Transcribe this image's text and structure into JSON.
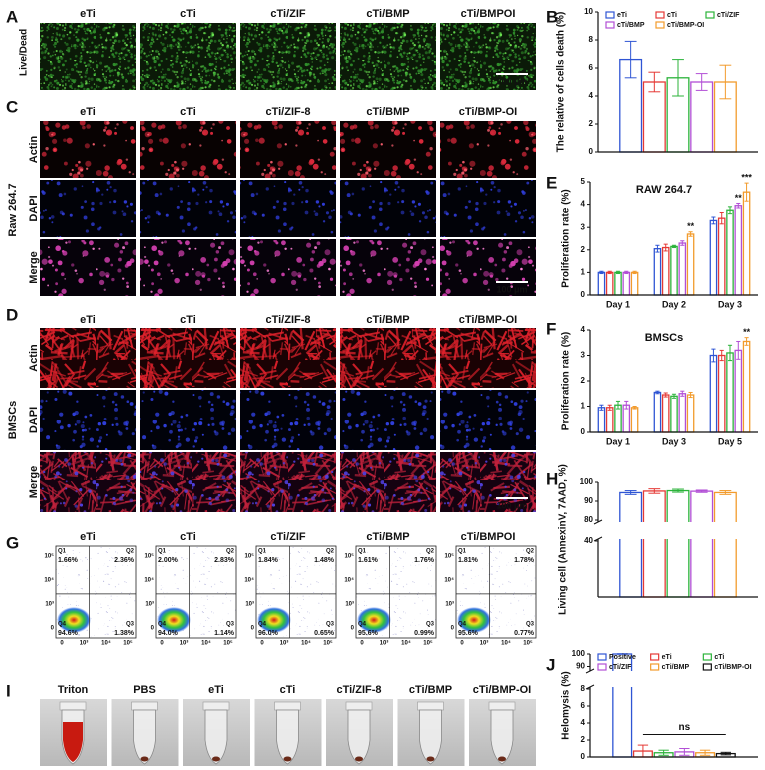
{
  "panels": {
    "A": {
      "label": "A",
      "columns": [
        "eTi",
        "cTi",
        "cTi/ZIF",
        "cTi/BMP",
        "cTi/BMPOI"
      ],
      "side": [
        "Live",
        "/Dead"
      ],
      "scale_bar": "200 μm"
    },
    "C": {
      "label": "C",
      "columns": [
        "eTi",
        "cTi",
        "cTi/ZIF-8",
        "cTi/BMP",
        "cTi/BMP-OI"
      ],
      "rows": [
        "Actin",
        "DAPI",
        "Merge"
      ],
      "side": "Raw 264.7",
      "scale_bar": "100 μm"
    },
    "D": {
      "label": "D",
      "columns": [
        "eTi",
        "cTi",
        "cTi/ZIF-8",
        "cTi/BMP",
        "cTi/BMP-OI"
      ],
      "rows": [
        "Actin",
        "DAPI",
        "Merge"
      ],
      "side": "BMSCs",
      "scale_bar": "100 μm"
    },
    "G": {
      "label": "G",
      "columns": [
        "eTi",
        "cTi",
        "cTi/ZIF",
        "cTi/BMP",
        "cTi/BMPOI"
      ],
      "y_ticks": [
        "10⁵",
        "10⁴",
        "10³",
        "0"
      ],
      "x_ticks": [
        "0",
        "10³",
        "10⁴",
        "10⁵"
      ],
      "quadrants": [
        "Q1",
        "Q2",
        "Q3",
        "Q4"
      ],
      "percentages": [
        [
          "1.66%",
          "2.36%",
          "1.38%",
          "94.6%"
        ],
        [
          "2.00%",
          "2.83%",
          "1.14%",
          "94.0%"
        ],
        [
          "1.84%",
          "1.48%",
          "0.65%",
          "96.0%"
        ],
        [
          "1.61%",
          "1.76%",
          "0.99%",
          "95.6%"
        ],
        [
          "1.81%",
          "1.78%",
          "0.77%",
          "95.6%"
        ]
      ]
    },
    "I": {
      "label": "I",
      "tubes": [
        "Triton",
        "PBS",
        "eTi",
        "cTi",
        "cTi/ZIF-8",
        "cTi/BMP",
        "cTi/BMP-OI"
      ]
    }
  },
  "chart_data": [
    {
      "type": "bar",
      "panel": "B",
      "ylabel": "The relative of cells death (%)",
      "categories": [
        null
      ],
      "legend": "top",
      "series": [
        {
          "name": "eTi",
          "color": "#2f55d4",
          "values": [
            6.6
          ],
          "errors": [
            1.3
          ]
        },
        {
          "name": "cTi",
          "color": "#e53935",
          "values": [
            5.0
          ],
          "errors": [
            0.7
          ]
        },
        {
          "name": "cTi/ZIF",
          "color": "#2bb33a",
          "values": [
            5.3
          ],
          "errors": [
            1.3
          ]
        },
        {
          "name": "cTi/BMP",
          "color": "#b24fd6",
          "values": [
            5.0
          ],
          "errors": [
            0.6
          ]
        },
        {
          "name": "cTi/BMP-OI",
          "color": "#f29b2c",
          "values": [
            5.0
          ],
          "errors": [
            1.2
          ]
        }
      ],
      "ylim": [
        0,
        10
      ],
      "yticks": [
        0,
        2,
        4,
        6,
        8,
        10
      ]
    },
    {
      "type": "bar",
      "panel": "E",
      "title": "RAW 264.7",
      "ylabel": "Proliferation rate (%)",
      "categories": [
        "Day 1",
        "Day 2",
        "Day 3"
      ],
      "series": [
        {
          "color": "#2f55d4",
          "values": [
            1.0,
            2.05,
            3.3
          ],
          "errors": [
            0.05,
            0.15,
            0.15
          ]
        },
        {
          "color": "#e53935",
          "values": [
            1.0,
            2.1,
            3.4
          ],
          "errors": [
            0.05,
            0.15,
            0.25
          ]
        },
        {
          "color": "#2bb33a",
          "values": [
            1.0,
            2.15,
            3.75
          ],
          "errors": [
            0.05,
            0.05,
            0.15
          ]
        },
        {
          "color": "#b24fd6",
          "values": [
            1.0,
            2.3,
            3.95
          ],
          "errors": [
            0.05,
            0.1,
            0.1
          ]
        },
        {
          "color": "#f29b2c",
          "values": [
            1.0,
            2.7,
            4.55
          ],
          "errors": [
            0.05,
            0.1,
            0.4
          ]
        }
      ],
      "ylim": [
        0,
        5
      ],
      "yticks": [
        0,
        1,
        2,
        3,
        4,
        5
      ],
      "annotations": [
        "**",
        "**",
        "***"
      ]
    },
    {
      "type": "bar",
      "panel": "F",
      "title": "BMSCs",
      "ylabel": "Proliferation rate (%)",
      "categories": [
        "Day 1",
        "Day 3",
        "Day 5"
      ],
      "series": [
        {
          "color": "#2f55d4",
          "values": [
            0.95,
            1.55,
            3.0
          ],
          "errors": [
            0.1,
            0.05,
            0.25
          ]
        },
        {
          "color": "#e53935",
          "values": [
            0.95,
            1.45,
            3.0
          ],
          "errors": [
            0.1,
            0.08,
            0.2
          ]
        },
        {
          "color": "#2bb33a",
          "values": [
            1.05,
            1.4,
            3.1
          ],
          "errors": [
            0.15,
            0.08,
            0.3
          ]
        },
        {
          "color": "#b24fd6",
          "values": [
            1.05,
            1.5,
            3.2
          ],
          "errors": [
            0.15,
            0.1,
            0.35
          ]
        },
        {
          "color": "#f29b2c",
          "values": [
            0.95,
            1.45,
            3.55
          ],
          "errors": [
            0.05,
            0.1,
            0.15
          ]
        }
      ],
      "ylim": [
        0,
        4
      ],
      "yticks": [
        0,
        1,
        2,
        3,
        4
      ],
      "annotations": [
        "**"
      ]
    },
    {
      "type": "bar",
      "panel": "H",
      "ylabel": "Living cell (AnnexinV, 7AAD, %)",
      "categories": [
        null
      ],
      "series": [
        {
          "color": "#2f55d4",
          "values": [
            94.5
          ],
          "errors": [
            1.0
          ]
        },
        {
          "color": "#e53935",
          "values": [
            95.3
          ],
          "errors": [
            1.2
          ]
        },
        {
          "color": "#2bb33a",
          "values": [
            95.5
          ],
          "errors": [
            0.8
          ]
        },
        {
          "color": "#b24fd6",
          "values": [
            95.2
          ],
          "errors": [
            0.6
          ]
        },
        {
          "color": "#f29b2c",
          "values": [
            94.5
          ],
          "errors": [
            1.0
          ]
        }
      ],
      "ylim": [
        0,
        100
      ],
      "ybreak": [
        40,
        80
      ],
      "yticks": [
        40,
        80,
        90,
        100
      ]
    },
    {
      "type": "bar",
      "panel": "J",
      "ylabel": "Helomysis (%)",
      "categories": [
        null
      ],
      "legend": "top",
      "series": [
        {
          "name": "Positive",
          "color": "#2f55d4",
          "values": [
            100
          ],
          "errors": [
            0.2
          ]
        },
        {
          "name": "eTi",
          "color": "#e53935",
          "values": [
            0.7
          ],
          "errors": [
            0.7
          ]
        },
        {
          "name": "cTi",
          "color": "#2bb33a",
          "values": [
            0.5
          ],
          "errors": [
            0.3
          ]
        },
        {
          "name": "cTi/ZIF",
          "color": "#b24fd6",
          "values": [
            0.6
          ],
          "errors": [
            0.4
          ]
        },
        {
          "name": "cTi/BMP",
          "color": "#f29b2c",
          "values": [
            0.5
          ],
          "errors": [
            0.3
          ]
        },
        {
          "name": "cTi/BMP-OI",
          "color": "#111111",
          "values": [
            0.4
          ],
          "errors": [
            0.15
          ]
        }
      ],
      "ylim": [
        0,
        100
      ],
      "ybreak": [
        8,
        88
      ],
      "yticks": [
        0,
        2,
        4,
        6,
        8,
        90,
        100
      ],
      "annotations": [
        "ns"
      ]
    }
  ]
}
